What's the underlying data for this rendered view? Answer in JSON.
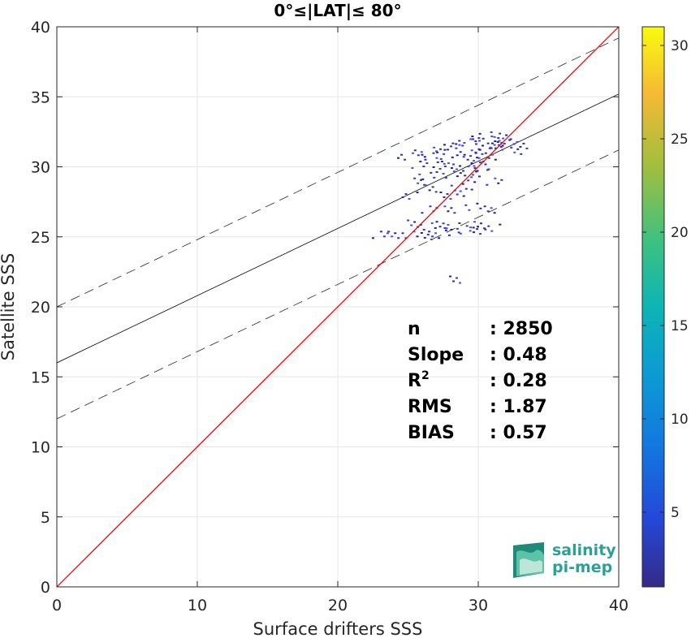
{
  "chart_data": {
    "type": "scatter",
    "title": "0°≤|LAT|≤ 80°",
    "xlabel": "Surface drifters SSS",
    "ylabel": "Satellite SSS",
    "xlim": [
      0,
      40
    ],
    "ylim": [
      0,
      40
    ],
    "xticks": [
      "0",
      "10",
      "20",
      "30",
      "40"
    ],
    "yticks": [
      "0",
      "5",
      "10",
      "15",
      "20",
      "25",
      "30",
      "35",
      "40"
    ],
    "grid": true,
    "identity_line": {
      "slope": 1,
      "intercept": 0,
      "color": "#ff0000"
    },
    "fit_line": {
      "slope": 0.48,
      "intercept": 16.0,
      "color": "#000000"
    },
    "envelope_lines": [
      {
        "slope": 0.48,
        "intercept": 20.0,
        "style": "dashed"
      },
      {
        "slope": 0.48,
        "intercept": 12.0,
        "style": "dashed"
      }
    ],
    "density_points": [
      [
        26.0,
        31.0
      ],
      [
        26.5,
        30.8
      ],
      [
        27.0,
        31.2
      ],
      [
        27.5,
        30.5
      ],
      [
        28.0,
        31.5
      ],
      [
        28.5,
        30.0
      ],
      [
        29.0,
        31.0
      ],
      [
        29.5,
        32.0
      ],
      [
        30.0,
        31.8
      ],
      [
        30.5,
        32.3
      ],
      [
        31.0,
        32.0
      ],
      [
        31.5,
        31.5
      ],
      [
        32.0,
        31.8
      ],
      [
        32.5,
        31.2
      ],
      [
        30.2,
        31.2
      ],
      [
        31.2,
        31.6
      ],
      [
        30.8,
        30.8
      ],
      [
        29.8,
        30.2
      ],
      [
        28.2,
        29.5
      ],
      [
        27.2,
        29.8
      ],
      [
        26.2,
        29.4
      ],
      [
        25.5,
        29.0
      ],
      [
        26.8,
        28.5
      ],
      [
        28.6,
        28.6
      ],
      [
        29.2,
        29.2
      ],
      [
        30.0,
        29.6
      ],
      [
        31.0,
        29.0
      ],
      [
        27.6,
        28.0
      ],
      [
        29.0,
        28.2
      ],
      [
        26.5,
        27.0
      ],
      [
        28.0,
        27.0
      ],
      [
        29.5,
        27.2
      ],
      [
        30.5,
        27.0
      ],
      [
        25.5,
        26.0
      ],
      [
        26.4,
        25.8
      ],
      [
        27.2,
        25.9
      ],
      [
        28.0,
        25.8
      ],
      [
        29.0,
        25.6
      ],
      [
        30.0,
        25.9
      ],
      [
        31.0,
        25.7
      ],
      [
        23.0,
        25.2
      ],
      [
        24.0,
        25.2
      ],
      [
        25.0,
        25.2
      ],
      [
        26.0,
        25.1
      ],
      [
        27.0,
        25.2
      ],
      [
        28.2,
        25.4
      ],
      [
        29.6,
        25.5
      ],
      [
        25.0,
        28.0
      ],
      [
        30.5,
        31.5
      ],
      [
        31.8,
        32.2
      ],
      [
        24.8,
        30.8
      ],
      [
        25.8,
        30.2
      ],
      [
        27.8,
        30.2
      ],
      [
        29.4,
        30.8
      ],
      [
        32.8,
        31.6
      ],
      [
        28.5,
        22.0
      ],
      [
        30.2,
        30.0
      ],
      [
        29.6,
        30.6
      ],
      [
        28.8,
        31.8
      ],
      [
        27.4,
        31.4
      ]
    ],
    "colorbar": {
      "range": [
        1,
        31
      ],
      "ticks": [
        "5",
        "10",
        "15",
        "20",
        "25",
        "30"
      ],
      "colormap": "parula"
    },
    "stats": [
      {
        "label": "n",
        "value": ": 2850"
      },
      {
        "label": "Slope",
        "value": ": 0.48"
      },
      {
        "label": "R",
        "sup": "2",
        "value": ": 0.28"
      },
      {
        "label": "RMS",
        "value": ": 1.87"
      },
      {
        "label": "BIAS",
        "value": ": 0.57"
      }
    ]
  },
  "logo": {
    "line1": "salinity",
    "line2": "pi-mep"
  }
}
